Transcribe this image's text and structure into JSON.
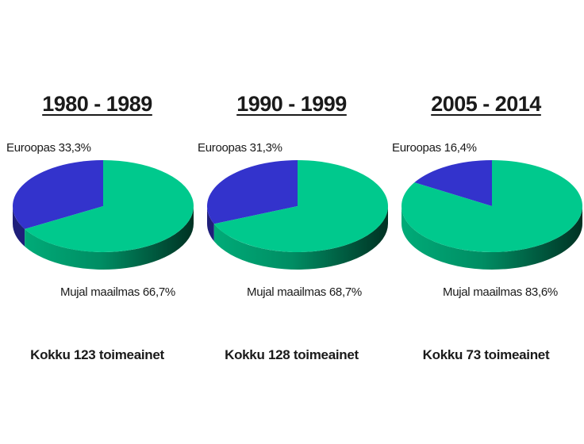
{
  "chart_data": [
    {
      "type": "pie",
      "title": "1980 - 1989",
      "slices": [
        {
          "name": "Euroopas",
          "value": 33.3,
          "label": "Euroopas 33,3%",
          "color": "#3333cc"
        },
        {
          "name": "Mujal maailmas",
          "value": 66.7,
          "label": "Mujal maailmas 66,7%",
          "color": "#00c98d"
        }
      ],
      "total_label": "Kokku 123 toimeainet"
    },
    {
      "type": "pie",
      "title": "1990 - 1999",
      "slices": [
        {
          "name": "Euroopas",
          "value": 31.3,
          "label": "Euroopas 31,3%",
          "color": "#3333cc"
        },
        {
          "name": "Mujal maailmas",
          "value": 68.7,
          "label": "Mujal maailmas 68,7%",
          "color": "#00c98d"
        }
      ],
      "total_label": "Kokku 128 toimeainet"
    },
    {
      "type": "pie",
      "title": "2005 - 2014",
      "slices": [
        {
          "name": "Euroopas",
          "value": 16.4,
          "label": "Euroopas 16,4%",
          "color": "#3333cc"
        },
        {
          "name": "Mujal maailmas",
          "value": 83.6,
          "label": "Mujal maailmas 83,6%",
          "color": "#00c98d"
        }
      ],
      "total_label": "Kokku 73 toimeainet"
    }
  ]
}
